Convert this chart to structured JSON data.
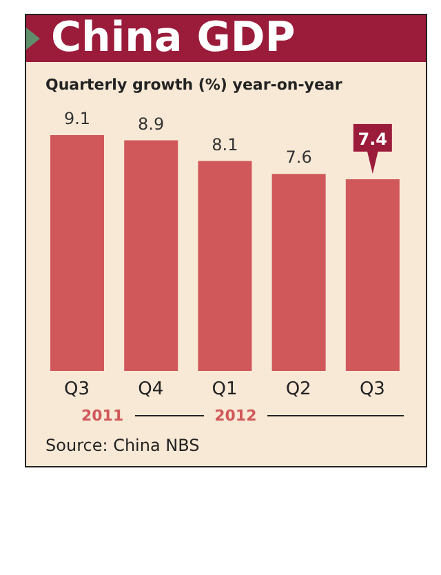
{
  "chart_data": {
    "type": "bar",
    "title": "China GDP",
    "subtitle": "Quarterly growth (%) year-on-year",
    "categories": [
      "Q3",
      "Q4",
      "Q1",
      "Q2",
      "Q3"
    ],
    "values": [
      9.1,
      8.9,
      8.1,
      7.6,
      7.4
    ],
    "color": "#d0585a",
    "data_labels": true,
    "grid": false,
    "legend": false,
    "annotations": [
      "2011",
      "2012",
      "Source: China NBS"
    ]
  }
}
